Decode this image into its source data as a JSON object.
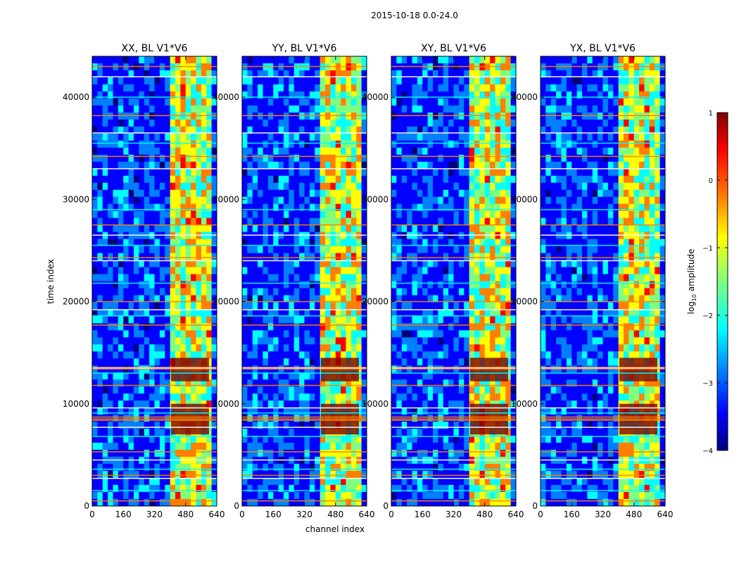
{
  "figure": {
    "suptitle": "2015-10-18 0.0-24.0"
  },
  "chart_data": [
    {
      "type": "heatmap",
      "title": "XX, BL V1*V6",
      "xlabel": "channel index",
      "ylabel": "time index",
      "xlim": [
        0,
        640
      ],
      "ylim": [
        0,
        44000
      ],
      "xticks": [
        "0",
        "160",
        "320",
        "480",
        "640"
      ],
      "yticks": [
        "0",
        "10000",
        "20000",
        "30000",
        "40000"
      ],
      "band_channels": [
        405,
        600
      ],
      "flagged_rows": [
        500,
        1500,
        2700,
        3000,
        3600,
        4500,
        5300,
        6800,
        7700,
        8400,
        9100,
        9600,
        11800,
        13000,
        13500,
        17700,
        18600,
        19200,
        20000,
        21800,
        24000,
        24300,
        25500,
        26500,
        27500,
        29000,
        33000,
        34200,
        35500,
        36500,
        38200,
        40000,
        42000,
        43000
      ]
    },
    {
      "type": "heatmap",
      "title": "YY, BL V1*V6",
      "xlabel": "channel index",
      "ylabel": "",
      "xlim": [
        0,
        640
      ],
      "ylim": [
        0,
        44000
      ],
      "xticks": [
        "0",
        "160",
        "320",
        "480",
        "640"
      ],
      "yticks": [
        "0",
        "10000",
        "20000",
        "30000",
        "40000"
      ],
      "band_channels": [
        405,
        600
      ],
      "flagged_rows": [
        500,
        1500,
        2700,
        3000,
        3600,
        4500,
        5300,
        6800,
        7700,
        8400,
        9100,
        9600,
        11800,
        13000,
        13500,
        17700,
        18600,
        19200,
        20000,
        21800,
        24000,
        24300,
        25500,
        26500,
        27500,
        29000,
        33000,
        34200,
        35500,
        36500,
        38200,
        40000,
        42000,
        43000
      ]
    },
    {
      "type": "heatmap",
      "title": "XY, BL V1*V6",
      "xlabel": "",
      "ylabel": "",
      "xlim": [
        0,
        640
      ],
      "ylim": [
        0,
        44000
      ],
      "xticks": [
        "0",
        "160",
        "320",
        "480",
        "640"
      ],
      "yticks": [
        "0",
        "10000",
        "20000",
        "30000",
        "40000"
      ],
      "band_channels": [
        405,
        600
      ],
      "flagged_rows": [
        500,
        1500,
        2700,
        3000,
        3600,
        4500,
        5300,
        6800,
        7700,
        8400,
        9100,
        9600,
        11800,
        13000,
        13500,
        17700,
        18600,
        19200,
        20000,
        21800,
        24000,
        24300,
        25500,
        26500,
        27500,
        29000,
        33000,
        34200,
        35500,
        36500,
        38200,
        40000,
        42000,
        43000
      ]
    },
    {
      "type": "heatmap",
      "title": "YX, BL V1*V6",
      "xlabel": "",
      "ylabel": "",
      "xlim": [
        0,
        640
      ],
      "ylim": [
        0,
        44000
      ],
      "xticks": [
        "0",
        "160",
        "320",
        "480",
        "640"
      ],
      "yticks": [
        "0",
        "10000",
        "20000",
        "30000",
        "40000"
      ],
      "band_channels": [
        405,
        600
      ],
      "flagged_rows": [
        500,
        1500,
        2700,
        3000,
        3600,
        4500,
        5300,
        6800,
        7700,
        8400,
        9100,
        9600,
        11800,
        13000,
        13500,
        17700,
        18600,
        19200,
        20000,
        21800,
        24000,
        24300,
        25500,
        26500,
        27500,
        29000,
        33000,
        34200,
        35500,
        36500,
        38200,
        40000,
        42000,
        43000
      ]
    }
  ],
  "colorbar": {
    "label": "log10 amplitude",
    "label_text": "log",
    "label_sub": "10",
    "label_rest": " amplitude",
    "range": [
      -4,
      1
    ],
    "ticks": [
      "1",
      "0",
      "−1",
      "−2",
      "−3",
      "−4"
    ],
    "colormap": "jet",
    "colors": [
      "#00007f",
      "#0000ff",
      "#007fff",
      "#00ffff",
      "#7fff7f",
      "#ffff00",
      "#ff7f00",
      "#ff0000",
      "#7f0000"
    ]
  }
}
